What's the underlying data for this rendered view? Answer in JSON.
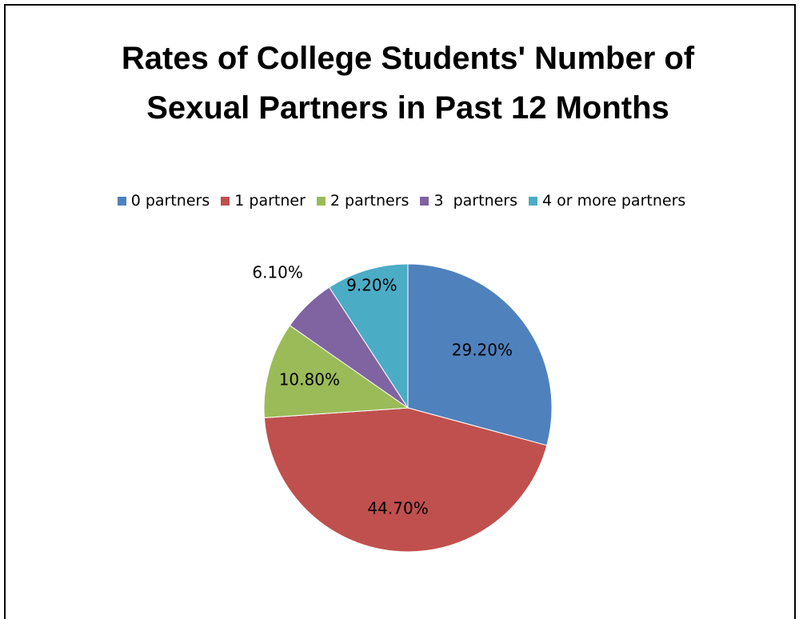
{
  "chart_data": {
    "type": "pie",
    "title": "Rates of College Students' Number of Sexual Partners in Past 12 Months",
    "categories": [
      "0 partners",
      "1 partner",
      "2 partners",
      "3  partners",
      "4 or more partners"
    ],
    "values": [
      29.2,
      44.7,
      10.8,
      6.1,
      9.2
    ],
    "value_labels": [
      "29.20%",
      "44.70%",
      "10.80%",
      "6.10%",
      "9.20%"
    ],
    "colors": [
      "#4f81bd",
      "#c0504d",
      "#9bbb59",
      "#8064a2",
      "#4bacc6"
    ],
    "legend": "top"
  }
}
